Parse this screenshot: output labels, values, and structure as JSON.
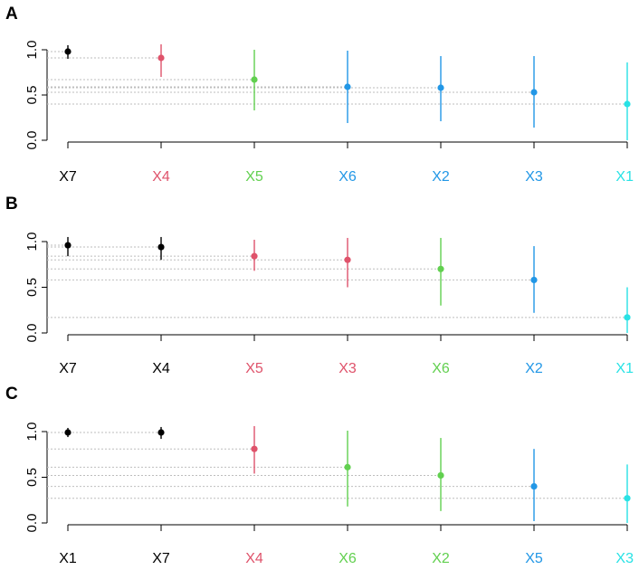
{
  "colors": {
    "black": "#000000",
    "red": "#DF536B",
    "green": "#61D04F",
    "blue": "#2297E6",
    "cyan": "#28E2E5",
    "guide": "#BEBEBE",
    "axis": "#000000"
  },
  "chart_data": [
    {
      "type": "scatter",
      "panel": "A",
      "ylim": [
        0,
        1
      ],
      "yticks": [
        "0.0",
        "0.5",
        "1.0"
      ],
      "categories": [
        "X7",
        "X4",
        "X5",
        "X6",
        "X2",
        "X3",
        "X1"
      ],
      "values": [
        0.98,
        0.91,
        0.67,
        0.59,
        0.58,
        0.53,
        0.4
      ],
      "lower": [
        0.9,
        0.7,
        0.33,
        0.19,
        0.21,
        0.14,
        0.0
      ],
      "upper": [
        1.05,
        1.06,
        1.0,
        0.99,
        0.93,
        0.93,
        0.86
      ],
      "colors": [
        "black",
        "red",
        "green",
        "blue",
        "blue",
        "blue",
        "cyan"
      ],
      "guides": true,
      "grid": false
    },
    {
      "type": "scatter",
      "panel": "B",
      "ylim": [
        0,
        1
      ],
      "yticks": [
        "0.0",
        "0.5",
        "1.0"
      ],
      "categories": [
        "X7",
        "X4",
        "X5",
        "X3",
        "X6",
        "X2",
        "X1"
      ],
      "values": [
        0.96,
        0.94,
        0.84,
        0.8,
        0.7,
        0.58,
        0.17
      ],
      "lower": [
        0.84,
        0.8,
        0.68,
        0.5,
        0.3,
        0.22,
        0.0
      ],
      "upper": [
        1.05,
        1.05,
        1.02,
        1.04,
        1.04,
        0.95,
        0.5
      ],
      "colors": [
        "black",
        "black",
        "red",
        "red",
        "green",
        "blue",
        "cyan"
      ],
      "guides": true,
      "grid": false
    },
    {
      "type": "scatter",
      "panel": "C",
      "ylim": [
        0,
        1
      ],
      "yticks": [
        "0.0",
        "0.5",
        "1.0"
      ],
      "categories": [
        "X1",
        "X7",
        "X4",
        "X6",
        "X2",
        "X5",
        "X3"
      ],
      "values": [
        0.99,
        0.99,
        0.81,
        0.61,
        0.52,
        0.4,
        0.27
      ],
      "lower": [
        0.94,
        0.92,
        0.54,
        0.18,
        0.13,
        0.02,
        0.0
      ],
      "upper": [
        1.04,
        1.05,
        1.06,
        1.01,
        0.93,
        0.81,
        0.64
      ],
      "colors": [
        "black",
        "black",
        "red",
        "green",
        "green",
        "blue",
        "cyan"
      ],
      "guides": true,
      "grid": false
    }
  ]
}
